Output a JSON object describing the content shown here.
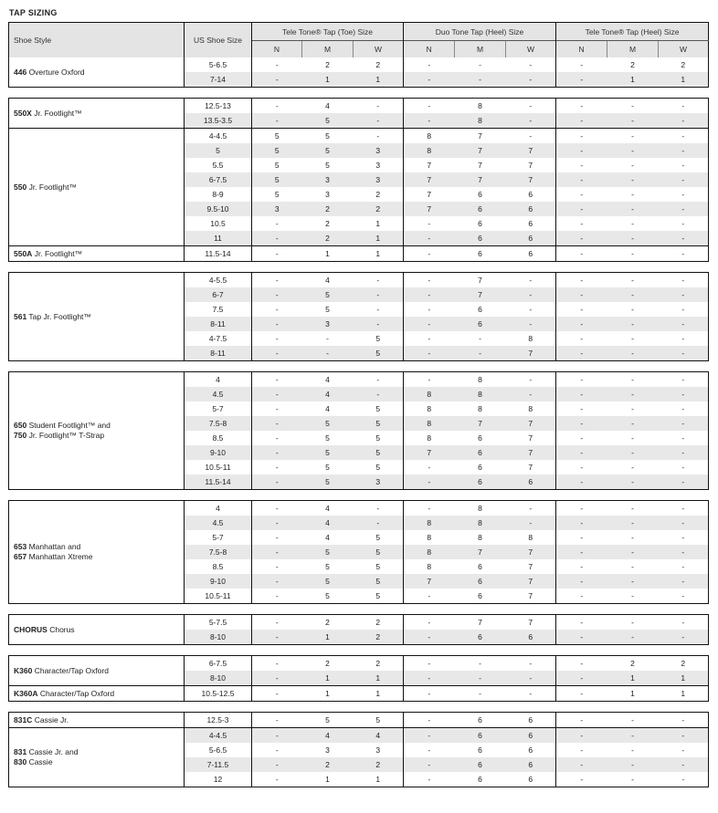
{
  "title": "TAP SIZING",
  "header": {
    "shoe_style": "Shoe Style",
    "us_shoe_size": "US Shoe Size",
    "groups": [
      "Tele Tone® Tap (Toe) Size",
      "Duo Tone Tap (Heel) Size",
      "Tele Tone® Tap (Heel) Size"
    ],
    "widths": [
      "N",
      "M",
      "W"
    ]
  },
  "colors": {
    "stripe": "#e8e8e8",
    "header_bg": "#e4e4e4",
    "border": "#111111"
  },
  "blocks": [
    {
      "groups": [
        {
          "lines": [
            {
              "code": "446",
              "name": "Overture Oxford"
            }
          ],
          "rows": [
            {
              "size": "5-6.5",
              "values": [
                "-",
                "2",
                "2",
                "-",
                "-",
                "-",
                "-",
                "2",
                "2"
              ]
            },
            {
              "size": "7-14",
              "values": [
                "-",
                "1",
                "1",
                "-",
                "-",
                "-",
                "-",
                "1",
                "1"
              ]
            }
          ]
        }
      ]
    },
    {
      "groups": [
        {
          "lines": [
            {
              "code": "550X",
              "name": "Jr. Footlight™"
            }
          ],
          "rows": [
            {
              "size": "12.5-13",
              "values": [
                "-",
                "4",
                "-",
                "-",
                "8",
                "-",
                "-",
                "-",
                "-"
              ]
            },
            {
              "size": "13.5-3.5",
              "values": [
                "-",
                "5",
                "-",
                "-",
                "8",
                "-",
                "-",
                "-",
                "-"
              ]
            }
          ]
        },
        {
          "lines": [
            {
              "code": "550",
              "name": "Jr. Footlight™"
            }
          ],
          "rows": [
            {
              "size": "4-4.5",
              "values": [
                "5",
                "5",
                "-",
                "8",
                "7",
                "-",
                "-",
                "-",
                "-"
              ]
            },
            {
              "size": "5",
              "values": [
                "5",
                "5",
                "3",
                "8",
                "7",
                "7",
                "-",
                "-",
                "-"
              ]
            },
            {
              "size": "5.5",
              "values": [
                "5",
                "5",
                "3",
                "7",
                "7",
                "7",
                "-",
                "-",
                "-"
              ]
            },
            {
              "size": "6-7.5",
              "values": [
                "5",
                "3",
                "3",
                "7",
                "7",
                "7",
                "-",
                "-",
                "-"
              ]
            },
            {
              "size": "8-9",
              "values": [
                "5",
                "3",
                "2",
                "7",
                "6",
                "6",
                "-",
                "-",
                "-"
              ]
            },
            {
              "size": "9.5-10",
              "values": [
                "3",
                "2",
                "2",
                "7",
                "6",
                "6",
                "-",
                "-",
                "-"
              ]
            },
            {
              "size": "10.5",
              "values": [
                "-",
                "2",
                "1",
                "-",
                "6",
                "6",
                "-",
                "-",
                "-"
              ]
            },
            {
              "size": "11",
              "values": [
                "-",
                "2",
                "1",
                "-",
                "6",
                "6",
                "-",
                "-",
                "-"
              ]
            }
          ]
        },
        {
          "lines": [
            {
              "code": "550A",
              "name": "Jr. Footlight™"
            }
          ],
          "rows": [
            {
              "size": "11.5-14",
              "values": [
                "-",
                "1",
                "1",
                "-",
                "6",
                "6",
                "-",
                "-",
                "-"
              ]
            }
          ]
        }
      ]
    },
    {
      "groups": [
        {
          "lines": [
            {
              "code": "561",
              "name": "Tap Jr. Footlight™"
            }
          ],
          "rows": [
            {
              "size": "4-5.5",
              "values": [
                "-",
                "4",
                "-",
                "-",
                "7",
                "-",
                "-",
                "-",
                "-"
              ]
            },
            {
              "size": "6-7",
              "values": [
                "-",
                "5",
                "-",
                "-",
                "7",
                "-",
                "-",
                "-",
                "-"
              ]
            },
            {
              "size": "7.5",
              "values": [
                "-",
                "5",
                "-",
                "-",
                "6",
                "-",
                "-",
                "-",
                "-"
              ]
            },
            {
              "size": "8-11",
              "values": [
                "-",
                "3",
                "-",
                "-",
                "6",
                "-",
                "-",
                "-",
                "-"
              ]
            },
            {
              "size": "4-7.5",
              "values": [
                "-",
                "-",
                "5",
                "-",
                "-",
                "8",
                "-",
                "-",
                "-"
              ]
            },
            {
              "size": "8-11",
              "values": [
                "-",
                "-",
                "5",
                "-",
                "-",
                "7",
                "-",
                "-",
                "-"
              ]
            }
          ]
        }
      ]
    },
    {
      "groups": [
        {
          "lines": [
            {
              "code": "650",
              "name": "Student Footlight™ and"
            },
            {
              "code": "750",
              "name": "Jr. Footlight™ T-Strap"
            }
          ],
          "rows": [
            {
              "size": "4",
              "values": [
                "-",
                "4",
                "-",
                "-",
                "8",
                "-",
                "-",
                "-",
                "-"
              ]
            },
            {
              "size": "4.5",
              "values": [
                "-",
                "4",
                "-",
                "8",
                "8",
                "-",
                "-",
                "-",
                "-"
              ]
            },
            {
              "size": "5-7",
              "values": [
                "-",
                "4",
                "5",
                "8",
                "8",
                "8",
                "-",
                "-",
                "-"
              ]
            },
            {
              "size": "7.5-8",
              "values": [
                "-",
                "5",
                "5",
                "8",
                "7",
                "7",
                "-",
                "-",
                "-"
              ]
            },
            {
              "size": "8.5",
              "values": [
                "-",
                "5",
                "5",
                "8",
                "6",
                "7",
                "-",
                "-",
                "-"
              ]
            },
            {
              "size": "9-10",
              "values": [
                "-",
                "5",
                "5",
                "7",
                "6",
                "7",
                "-",
                "-",
                "-"
              ]
            },
            {
              "size": "10.5-11",
              "values": [
                "-",
                "5",
                "5",
                "-",
                "6",
                "7",
                "-",
                "-",
                "-"
              ]
            },
            {
              "size": "11.5-14",
              "values": [
                "-",
                "5",
                "3",
                "-",
                "6",
                "6",
                "-",
                "-",
                "-"
              ]
            }
          ]
        }
      ]
    },
    {
      "groups": [
        {
          "lines": [
            {
              "code": "653",
              "name": "Manhattan and"
            },
            {
              "code": "657",
              "name": "Manhattan Xtreme"
            }
          ],
          "rows": [
            {
              "size": "4",
              "values": [
                "-",
                "4",
                "-",
                "-",
                "8",
                "-",
                "-",
                "-",
                "-"
              ]
            },
            {
              "size": "4.5",
              "values": [
                "-",
                "4",
                "-",
                "8",
                "8",
                "-",
                "-",
                "-",
                "-"
              ]
            },
            {
              "size": "5-7",
              "values": [
                "-",
                "4",
                "5",
                "8",
                "8",
                "8",
                "-",
                "-",
                "-"
              ]
            },
            {
              "size": "7.5-8",
              "values": [
                "-",
                "5",
                "5",
                "8",
                "7",
                "7",
                "-",
                "-",
                "-"
              ]
            },
            {
              "size": "8.5",
              "values": [
                "-",
                "5",
                "5",
                "8",
                "6",
                "7",
                "-",
                "-",
                "-"
              ]
            },
            {
              "size": "9-10",
              "values": [
                "-",
                "5",
                "5",
                "7",
                "6",
                "7",
                "-",
                "-",
                "-"
              ]
            },
            {
              "size": "10.5-11",
              "values": [
                "-",
                "5",
                "5",
                "-",
                "6",
                "7",
                "-",
                "-",
                "-"
              ]
            }
          ]
        }
      ]
    },
    {
      "groups": [
        {
          "lines": [
            {
              "code": "CHORUS",
              "name": "Chorus"
            }
          ],
          "rows": [
            {
              "size": "5-7.5",
              "values": [
                "-",
                "2",
                "2",
                "-",
                "7",
                "7",
                "-",
                "-",
                "-"
              ]
            },
            {
              "size": "8-10",
              "values": [
                "-",
                "1",
                "2",
                "-",
                "6",
                "6",
                "-",
                "-",
                "-"
              ]
            }
          ]
        }
      ]
    },
    {
      "groups": [
        {
          "lines": [
            {
              "code": "K360",
              "name": "Character/Tap Oxford"
            }
          ],
          "rows": [
            {
              "size": "6-7.5",
              "values": [
                "-",
                "2",
                "2",
                "-",
                "-",
                "-",
                "-",
                "2",
                "2"
              ]
            },
            {
              "size": "8-10",
              "values": [
                "-",
                "1",
                "1",
                "-",
                "-",
                "-",
                "-",
                "1",
                "1"
              ]
            }
          ]
        },
        {
          "lines": [
            {
              "code": "K360A",
              "name": "Character/Tap Oxford"
            }
          ],
          "rows": [
            {
              "size": "10.5-12.5",
              "values": [
                "-",
                "1",
                "1",
                "-",
                "-",
                "-",
                "-",
                "1",
                "1"
              ]
            }
          ]
        }
      ]
    },
    {
      "groups": [
        {
          "lines": [
            {
              "code": "831C",
              "name": "Cassie Jr."
            }
          ],
          "rows": [
            {
              "size": "12.5-3",
              "values": [
                "-",
                "5",
                "5",
                "-",
                "6",
                "6",
                "-",
                "-",
                "-"
              ]
            }
          ]
        },
        {
          "lines": [
            {
              "code": "831",
              "name": "Cassie Jr. and"
            },
            {
              "code": "830",
              "name": "Cassie"
            }
          ],
          "rows": [
            {
              "size": "4-4.5",
              "values": [
                "-",
                "4",
                "4",
                "-",
                "6",
                "6",
                "-",
                "-",
                "-"
              ]
            },
            {
              "size": "5-6.5",
              "values": [
                "-",
                "3",
                "3",
                "-",
                "6",
                "6",
                "-",
                "-",
                "-"
              ]
            },
            {
              "size": "7-11.5",
              "values": [
                "-",
                "2",
                "2",
                "-",
                "6",
                "6",
                "-",
                "-",
                "-"
              ]
            },
            {
              "size": "12",
              "values": [
                "-",
                "1",
                "1",
                "-",
                "6",
                "6",
                "-",
                "-",
                "-"
              ]
            }
          ]
        }
      ]
    }
  ]
}
